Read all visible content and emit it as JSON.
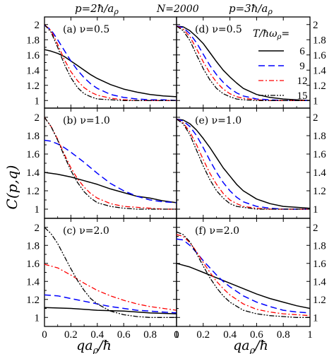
{
  "header": {
    "left": "p=2ħ/a",
    "left_sub": "ρ",
    "center": "N=2000",
    "right": "p=3ħ/a",
    "right_sub": "ρ"
  },
  "axes": {
    "ylabel": "C(p,q)",
    "xlabel_left": "qa",
    "xlabel_sub": "ρ",
    "xlabel_right": "/ħ"
  },
  "legend": {
    "title": "T/ħω",
    "title_sub": "ρ",
    "title_suffix": "=",
    "placement": "top-right of panel (d)"
  },
  "chart_data": {
    "type": "line",
    "xlim": [
      0,
      1
    ],
    "ylim": [
      0.9,
      2.1
    ],
    "xticks": [
      "0",
      "0.2",
      "0.4",
      "0.6",
      "0.8",
      "1"
    ],
    "yticks": [
      "1",
      "1.2",
      "1.4",
      "1.6",
      "1.8",
      "2"
    ],
    "series_names": [
      "6",
      "9",
      "12",
      "15"
    ],
    "series_colors": [
      "#000000",
      "#0000ff",
      "#ff0000",
      "#000000"
    ],
    "panels": [
      {
        "label": "(a) ν=0.5",
        "series": [
          {
            "name": "6",
            "x": [
              0,
              0.05,
              0.1,
              0.15,
              0.2,
              0.25,
              0.3,
              0.35,
              0.4,
              0.5,
              0.6,
              0.7,
              0.8,
              0.9,
              1.0
            ],
            "y": [
              1.67,
              1.65,
              1.62,
              1.58,
              1.52,
              1.46,
              1.4,
              1.34,
              1.29,
              1.21,
              1.15,
              1.11,
              1.08,
              1.06,
              1.05
            ]
          },
          {
            "name": "9",
            "x": [
              0,
              0.05,
              0.1,
              0.15,
              0.2,
              0.25,
              0.3,
              0.35,
              0.4,
              0.5,
              0.6,
              0.7,
              0.8,
              0.9,
              1.0
            ],
            "y": [
              1.99,
              1.93,
              1.8,
              1.66,
              1.52,
              1.4,
              1.3,
              1.22,
              1.16,
              1.08,
              1.04,
              1.02,
              1.01,
              1.01,
              1.0
            ]
          },
          {
            "name": "12",
            "x": [
              0,
              0.05,
              0.1,
              0.15,
              0.2,
              0.25,
              0.3,
              0.35,
              0.4,
              0.5,
              0.6,
              0.7,
              0.8,
              0.9,
              1.0
            ],
            "y": [
              2.0,
              1.92,
              1.74,
              1.54,
              1.38,
              1.26,
              1.17,
              1.11,
              1.07,
              1.03,
              1.01,
              1.0,
              1.0,
              1.0,
              1.0
            ]
          },
          {
            "name": "15",
            "x": [
              0,
              0.05,
              0.1,
              0.15,
              0.2,
              0.25,
              0.3,
              0.35,
              0.4,
              0.5,
              0.6,
              0.7,
              0.8,
              0.9,
              1.0
            ],
            "y": [
              2.0,
              1.9,
              1.7,
              1.48,
              1.3,
              1.17,
              1.09,
              1.05,
              1.02,
              1.01,
              1.0,
              1.0,
              1.0,
              1.0,
              1.0
            ]
          }
        ]
      },
      {
        "label": "(b) ν=1.0",
        "series": [
          {
            "name": "6",
            "x": [
              0,
              0.1,
              0.2,
              0.3,
              0.4,
              0.5,
              0.6,
              0.7,
              0.8,
              0.9,
              1.0
            ],
            "y": [
              1.4,
              1.38,
              1.35,
              1.31,
              1.27,
              1.22,
              1.18,
              1.14,
              1.12,
              1.09,
              1.07
            ]
          },
          {
            "name": "9",
            "x": [
              0,
              0.05,
              0.1,
              0.15,
              0.2,
              0.3,
              0.4,
              0.5,
              0.6,
              0.7,
              0.8,
              0.9,
              1.0
            ],
            "y": [
              1.75,
              1.74,
              1.71,
              1.67,
              1.62,
              1.51,
              1.39,
              1.28,
              1.2,
              1.14,
              1.1,
              1.08,
              1.07
            ]
          },
          {
            "name": "12",
            "x": [
              0,
              0.05,
              0.1,
              0.15,
              0.2,
              0.25,
              0.3,
              0.35,
              0.4,
              0.5,
              0.6,
              0.7,
              0.8,
              0.9,
              1.0
            ],
            "y": [
              2.0,
              1.9,
              1.76,
              1.6,
              1.45,
              1.33,
              1.24,
              1.17,
              1.12,
              1.06,
              1.03,
              1.02,
              1.01,
              1.0,
              1.0
            ]
          },
          {
            "name": "15",
            "x": [
              0,
              0.05,
              0.1,
              0.15,
              0.2,
              0.25,
              0.3,
              0.35,
              0.4,
              0.5,
              0.6,
              0.7,
              0.8,
              0.9,
              1.0
            ],
            "y": [
              2.0,
              1.9,
              1.75,
              1.58,
              1.42,
              1.29,
              1.19,
              1.12,
              1.07,
              1.03,
              1.01,
              1.0,
              1.0,
              1.0,
              1.0
            ]
          }
        ]
      },
      {
        "label": "(c) ν=2.0",
        "series": [
          {
            "name": "6",
            "x": [
              0,
              0.2,
              0.4,
              0.6,
              0.8,
              1.0
            ],
            "y": [
              1.11,
              1.1,
              1.08,
              1.07,
              1.05,
              1.04
            ]
          },
          {
            "name": "9",
            "x": [
              0,
              0.1,
              0.2,
              0.3,
              0.4,
              0.5,
              0.6,
              0.7,
              0.8,
              0.9,
              1.0
            ],
            "y": [
              1.25,
              1.24,
              1.21,
              1.18,
              1.15,
              1.12,
              1.1,
              1.08,
              1.07,
              1.06,
              1.05
            ]
          },
          {
            "name": "12",
            "x": [
              0,
              0.1,
              0.2,
              0.3,
              0.4,
              0.5,
              0.6,
              0.7,
              0.8,
              0.9,
              1.0
            ],
            "y": [
              1.59,
              1.55,
              1.47,
              1.38,
              1.3,
              1.24,
              1.19,
              1.15,
              1.12,
              1.1,
              1.08
            ]
          },
          {
            "name": "15",
            "x": [
              0,
              0.05,
              0.1,
              0.15,
              0.2,
              0.25,
              0.3,
              0.35,
              0.4,
              0.5,
              0.6,
              0.7,
              0.8,
              0.9,
              1.0
            ],
            "y": [
              2.0,
              1.93,
              1.82,
              1.68,
              1.54,
              1.41,
              1.3,
              1.21,
              1.15,
              1.07,
              1.03,
              1.01,
              1.0,
              1.0,
              1.0
            ]
          }
        ]
      },
      {
        "label": "(d) ν=0.5",
        "series": [
          {
            "name": "6",
            "x": [
              0,
              0.05,
              0.1,
              0.15,
              0.2,
              0.25,
              0.3,
              0.35,
              0.4,
              0.45,
              0.5,
              0.6,
              0.7,
              0.8,
              0.9,
              1.0
            ],
            "y": [
              1.98,
              1.97,
              1.92,
              1.84,
              1.75,
              1.63,
              1.51,
              1.4,
              1.31,
              1.23,
              1.16,
              1.08,
              1.04,
              1.02,
              1.01,
              1.0
            ]
          },
          {
            "name": "9",
            "x": [
              0,
              0.05,
              0.1,
              0.15,
              0.2,
              0.25,
              0.3,
              0.35,
              0.4,
              0.45,
              0.5,
              0.6,
              0.7,
              0.8,
              0.9,
              1.0
            ],
            "y": [
              1.98,
              1.96,
              1.88,
              1.76,
              1.61,
              1.46,
              1.34,
              1.24,
              1.16,
              1.1,
              1.06,
              1.02,
              1.01,
              1.0,
              1.0,
              1.0
            ]
          },
          {
            "name": "12",
            "x": [
              0,
              0.05,
              0.1,
              0.15,
              0.2,
              0.25,
              0.3,
              0.35,
              0.4,
              0.45,
              0.5,
              0.6,
              0.7,
              0.8,
              0.9,
              1.0
            ],
            "y": [
              1.98,
              1.94,
              1.84,
              1.68,
              1.51,
              1.36,
              1.24,
              1.15,
              1.09,
              1.05,
              1.03,
              1.01,
              1.0,
              1.0,
              1.0,
              1.0
            ]
          },
          {
            "name": "15",
            "x": [
              0,
              0.05,
              0.1,
              0.15,
              0.2,
              0.25,
              0.3,
              0.35,
              0.4,
              0.45,
              0.5,
              0.6,
              0.7,
              0.8,
              0.9,
              1.0
            ],
            "y": [
              1.98,
              1.92,
              1.79,
              1.6,
              1.42,
              1.27,
              1.16,
              1.09,
              1.05,
              1.02,
              1.01,
              1.0,
              1.0,
              1.0,
              1.0,
              1.0
            ]
          }
        ]
      },
      {
        "label": "(e) ν=1.0",
        "series": [
          {
            "name": "6",
            "x": [
              0,
              0.05,
              0.1,
              0.15,
              0.2,
              0.25,
              0.3,
              0.35,
              0.4,
              0.45,
              0.5,
              0.6,
              0.7,
              0.8,
              0.9,
              1.0
            ],
            "y": [
              1.98,
              1.97,
              1.93,
              1.86,
              1.77,
              1.67,
              1.56,
              1.45,
              1.36,
              1.27,
              1.2,
              1.11,
              1.06,
              1.03,
              1.02,
              1.01
            ]
          },
          {
            "name": "9",
            "x": [
              0,
              0.05,
              0.1,
              0.15,
              0.2,
              0.25,
              0.3,
              0.35,
              0.4,
              0.45,
              0.5,
              0.6,
              0.7,
              0.8,
              0.9,
              1.0
            ],
            "y": [
              1.98,
              1.96,
              1.9,
              1.8,
              1.67,
              1.53,
              1.4,
              1.29,
              1.2,
              1.13,
              1.08,
              1.03,
              1.01,
              1.0,
              1.0,
              1.0
            ]
          },
          {
            "name": "12",
            "x": [
              0,
              0.05,
              0.1,
              0.15,
              0.2,
              0.25,
              0.3,
              0.35,
              0.4,
              0.45,
              0.5,
              0.6,
              0.7,
              0.8,
              0.9,
              1.0
            ],
            "y": [
              1.98,
              1.94,
              1.84,
              1.7,
              1.54,
              1.39,
              1.27,
              1.17,
              1.1,
              1.06,
              1.03,
              1.01,
              1.0,
              1.0,
              1.0,
              1.0
            ]
          },
          {
            "name": "15",
            "x": [
              0,
              0.05,
              0.1,
              0.15,
              0.2,
              0.25,
              0.3,
              0.35,
              0.4,
              0.45,
              0.5,
              0.6,
              0.7,
              0.8,
              0.9,
              1.0
            ],
            "y": [
              1.98,
              1.93,
              1.81,
              1.64,
              1.47,
              1.32,
              1.2,
              1.12,
              1.06,
              1.03,
              1.02,
              1.0,
              1.0,
              1.0,
              1.0,
              1.0
            ]
          }
        ]
      },
      {
        "label": "(f) ν=2.0",
        "series": [
          {
            "name": "6",
            "x": [
              0,
              0.1,
              0.2,
              0.3,
              0.4,
              0.5,
              0.6,
              0.7,
              0.8,
              0.9,
              1.0
            ],
            "y": [
              1.6,
              1.56,
              1.5,
              1.44,
              1.38,
              1.32,
              1.26,
              1.21,
              1.17,
              1.13,
              1.1
            ]
          },
          {
            "name": "9",
            "x": [
              0,
              0.05,
              0.1,
              0.15,
              0.2,
              0.25,
              0.3,
              0.35,
              0.4,
              0.5,
              0.6,
              0.7,
              0.8,
              0.9,
              1.0
            ],
            "y": [
              1.87,
              1.86,
              1.8,
              1.72,
              1.63,
              1.55,
              1.47,
              1.4,
              1.34,
              1.24,
              1.17,
              1.12,
              1.08,
              1.06,
              1.05
            ]
          },
          {
            "name": "12",
            "x": [
              0,
              0.05,
              0.1,
              0.15,
              0.2,
              0.25,
              0.3,
              0.35,
              0.4,
              0.5,
              0.6,
              0.7,
              0.8,
              0.9,
              1.0
            ],
            "y": [
              1.92,
              1.9,
              1.83,
              1.73,
              1.61,
              1.5,
              1.4,
              1.32,
              1.25,
              1.15,
              1.09,
              1.06,
              1.04,
              1.03,
              1.02
            ]
          },
          {
            "name": "15",
            "x": [
              0,
              0.05,
              0.1,
              0.15,
              0.2,
              0.25,
              0.3,
              0.35,
              0.4,
              0.5,
              0.6,
              0.7,
              0.8,
              0.9,
              1.0
            ],
            "y": [
              1.95,
              1.92,
              1.84,
              1.71,
              1.57,
              1.44,
              1.33,
              1.24,
              1.17,
              1.08,
              1.04,
              1.02,
              1.01,
              1.0,
              1.0
            ]
          }
        ]
      }
    ]
  }
}
